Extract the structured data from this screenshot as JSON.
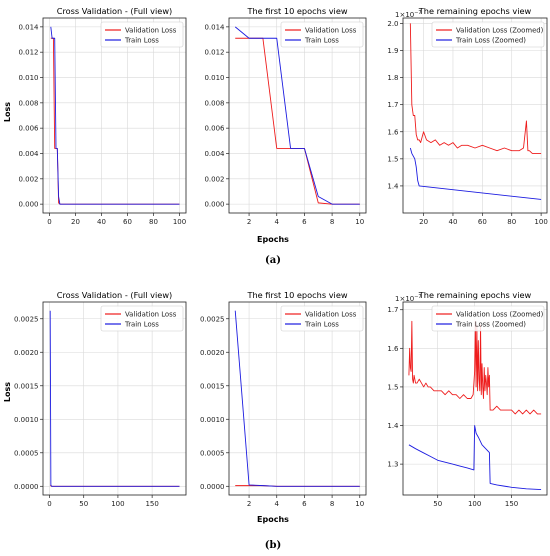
{
  "colors": {
    "validation": "#ee1c1c",
    "train": "#1c1ce0",
    "grid": "#d9d9d9",
    "axis": "#222222"
  },
  "ylabel": "Loss",
  "xlabel": "Epochs",
  "chart_data": [
    {
      "type": "line",
      "panel": "a-full",
      "title": "Cross Validation -  (Full view)",
      "xlim": [
        -5,
        105
      ],
      "ylim": [
        -0.0007,
        0.0147
      ],
      "grid": true,
      "legend": "top-right",
      "xticks": [
        0,
        20,
        40,
        60,
        80,
        100
      ],
      "yticks": [
        0.0,
        0.002,
        0.004,
        0.006,
        0.008,
        0.01,
        0.012,
        0.014
      ],
      "ydecimals": 3,
      "series": [
        {
          "name": "Validation Loss",
          "color": "validation",
          "x": [
            1,
            2,
            3,
            4,
            5,
            6,
            7,
            8,
            9,
            10,
            100
          ],
          "y": [
            0.0131,
            0.0131,
            0.0131,
            0.0044,
            0.0044,
            0.0044,
            0.0001,
            0.0,
            0.0,
            0.0,
            0.0
          ]
        },
        {
          "name": "Train Loss",
          "color": "train",
          "x": [
            1,
            2,
            3,
            4,
            5,
            6,
            7,
            8,
            9,
            10,
            100
          ],
          "y": [
            0.014,
            0.0131,
            0.0131,
            0.0131,
            0.0044,
            0.0044,
            0.0006,
            0.0,
            0.0,
            0.0,
            0.0
          ]
        }
      ]
    },
    {
      "type": "line",
      "panel": "a-first10",
      "title": "The first 10 epochs view",
      "xlim": [
        0.55,
        10.45
      ],
      "ylim": [
        -0.0007,
        0.0147
      ],
      "grid": true,
      "legend": "top-right",
      "xticks": [
        2,
        4,
        6,
        8,
        10
      ],
      "yticks": [
        0.0,
        0.002,
        0.004,
        0.006,
        0.008,
        0.01,
        0.012,
        0.014
      ],
      "ydecimals": 3,
      "series": [
        {
          "name": "Validation Loss",
          "color": "validation",
          "x": [
            1,
            2,
            3,
            4,
            5,
            6,
            7,
            8,
            9,
            10
          ],
          "y": [
            0.0131,
            0.0131,
            0.0131,
            0.0044,
            0.0044,
            0.0044,
            0.0001,
            0.0,
            0.0,
            0.0
          ]
        },
        {
          "name": "Train Loss",
          "color": "train",
          "x": [
            1,
            2,
            3,
            4,
            5,
            6,
            7,
            8,
            9,
            10
          ],
          "y": [
            0.014,
            0.0131,
            0.0131,
            0.0131,
            0.0044,
            0.0044,
            0.0006,
            0.0,
            0.0,
            0.0
          ]
        }
      ]
    },
    {
      "type": "line",
      "panel": "a-remaining",
      "title": "The remaining epochs view",
      "offset_label": "1e-7",
      "xlim": [
        6,
        104
      ],
      "ylim": [
        1.3,
        2.02
      ],
      "grid": true,
      "legend": "top-right",
      "xticks": [
        20,
        40,
        60,
        80,
        100
      ],
      "yticks": [
        1.4,
        1.5,
        1.6,
        1.7,
        1.8,
        1.9,
        2.0
      ],
      "ydecimals": 1,
      "series": [
        {
          "name": "Validation Loss (Zoomed)",
          "color": "validation",
          "x": [
            11,
            12,
            13,
            14,
            15,
            16,
            17,
            18,
            19,
            20,
            22,
            25,
            28,
            31,
            34,
            37,
            40,
            43,
            46,
            50,
            55,
            60,
            65,
            70,
            75,
            80,
            85,
            88,
            90,
            91,
            92,
            94,
            97,
            100
          ],
          "y": [
            2.0,
            1.7,
            1.66,
            1.66,
            1.59,
            1.57,
            1.57,
            1.56,
            1.58,
            1.6,
            1.57,
            1.56,
            1.57,
            1.55,
            1.56,
            1.55,
            1.56,
            1.54,
            1.55,
            1.55,
            1.54,
            1.55,
            1.54,
            1.53,
            1.54,
            1.53,
            1.53,
            1.54,
            1.64,
            1.53,
            1.53,
            1.52,
            1.52,
            1.52
          ]
        },
        {
          "name": "Train Loss (Zoomed)",
          "color": "train",
          "x": [
            11,
            12,
            14,
            15,
            16,
            17,
            100
          ],
          "y": [
            1.54,
            1.52,
            1.5,
            1.47,
            1.42,
            1.4,
            1.35
          ]
        }
      ]
    },
    {
      "type": "line",
      "panel": "b-full",
      "title": "Cross Validation -  (Full view)",
      "xlim": [
        -9.5,
        199.5
      ],
      "ylim": [
        -0.00013,
        0.00275
      ],
      "grid": true,
      "legend": "top-right",
      "xticks": [
        0,
        50,
        100,
        150
      ],
      "yticks": [
        0.0,
        0.0005,
        0.001,
        0.0015,
        0.002,
        0.0025
      ],
      "ydecimals": 4,
      "series": [
        {
          "name": "Validation Loss",
          "color": "validation",
          "x": [
            1,
            2,
            3,
            190
          ],
          "y": [
            1e-05,
            1e-05,
            0.0,
            0.0
          ]
        },
        {
          "name": "Train Loss",
          "color": "train",
          "x": [
            1,
            2,
            3,
            190
          ],
          "y": [
            0.00262,
            2e-05,
            0.0,
            0.0
          ]
        }
      ]
    },
    {
      "type": "line",
      "panel": "b-first10",
      "title": "The first 10 epochs view",
      "xlim": [
        0.55,
        10.45
      ],
      "ylim": [
        -0.00013,
        0.00275
      ],
      "grid": true,
      "legend": "top-right",
      "xticks": [
        2,
        4,
        6,
        8,
        10
      ],
      "yticks": [
        0.0,
        0.0005,
        0.001,
        0.0015,
        0.002,
        0.0025
      ],
      "ydecimals": 4,
      "series": [
        {
          "name": "Validation Loss",
          "color": "validation",
          "x": [
            1,
            2,
            3,
            4,
            5,
            6,
            7,
            8,
            9,
            10
          ],
          "y": [
            1e-05,
            1e-05,
            1e-05,
            0.0,
            0.0,
            0.0,
            0.0,
            0.0,
            0.0,
            0.0
          ]
        },
        {
          "name": "Train Loss",
          "color": "train",
          "x": [
            1,
            2,
            3,
            4,
            5,
            6,
            7,
            8,
            9,
            10
          ],
          "y": [
            0.00262,
            2e-05,
            1e-05,
            0.0,
            0.0,
            0.0,
            0.0,
            0.0,
            0.0,
            0.0
          ]
        }
      ]
    },
    {
      "type": "line",
      "panel": "b-remaining",
      "title": "The remaining epochs view",
      "offset_label": "1e-7",
      "xlim": [
        3,
        198
      ],
      "ylim": [
        1.22,
        1.72
      ],
      "grid": true,
      "legend": "top-right",
      "xticks": [
        50,
        100,
        150
      ],
      "yticks": [
        1.3,
        1.4,
        1.5,
        1.6,
        1.7
      ],
      "ydecimals": 1,
      "series": [
        {
          "name": "Validation Loss (Zoomed)",
          "color": "validation",
          "x": [
            11,
            12,
            13,
            14,
            15,
            16,
            17,
            18,
            19,
            20,
            22,
            25,
            28,
            31,
            34,
            37,
            40,
            45,
            50,
            55,
            60,
            65,
            70,
            75,
            80,
            85,
            90,
            95,
            98,
            100,
            101,
            102,
            103,
            104,
            105,
            106,
            107,
            108,
            109,
            110,
            111,
            112,
            113,
            114,
            115,
            116,
            117,
            118,
            119,
            120,
            121,
            122,
            125,
            130,
            135,
            140,
            145,
            150,
            155,
            160,
            165,
            170,
            175,
            180,
            185,
            190
          ],
          "y": [
            1.53,
            1.6,
            1.55,
            1.54,
            1.67,
            1.52,
            1.51,
            1.53,
            1.52,
            1.51,
            1.51,
            1.52,
            1.51,
            1.5,
            1.51,
            1.5,
            1.5,
            1.49,
            1.49,
            1.49,
            1.48,
            1.49,
            1.48,
            1.48,
            1.47,
            1.48,
            1.47,
            1.47,
            1.48,
            1.54,
            1.67,
            1.5,
            1.66,
            1.49,
            1.62,
            1.52,
            1.49,
            1.66,
            1.48,
            1.56,
            1.5,
            1.47,
            1.55,
            1.49,
            1.53,
            1.51,
            1.48,
            1.55,
            1.5,
            1.53,
            1.44,
            1.44,
            1.44,
            1.45,
            1.44,
            1.44,
            1.44,
            1.44,
            1.43,
            1.44,
            1.43,
            1.44,
            1.43,
            1.44,
            1.43,
            1.43
          ]
        },
        {
          "name": "Train Loss (Zoomed)",
          "color": "train",
          "x": [
            11,
            20,
            30,
            40,
            50,
            60,
            70,
            80,
            90,
            99,
            100,
            102,
            105,
            110,
            115,
            120,
            121,
            130,
            140,
            150,
            160,
            170,
            180,
            190
          ],
          "y": [
            1.35,
            1.34,
            1.33,
            1.32,
            1.31,
            1.305,
            1.3,
            1.295,
            1.29,
            1.285,
            1.4,
            1.38,
            1.37,
            1.35,
            1.34,
            1.33,
            1.25,
            1.246,
            1.243,
            1.24,
            1.238,
            1.236,
            1.235,
            1.234
          ]
        }
      ]
    }
  ],
  "captions": {
    "a": "(a)",
    "b": "(b)"
  }
}
